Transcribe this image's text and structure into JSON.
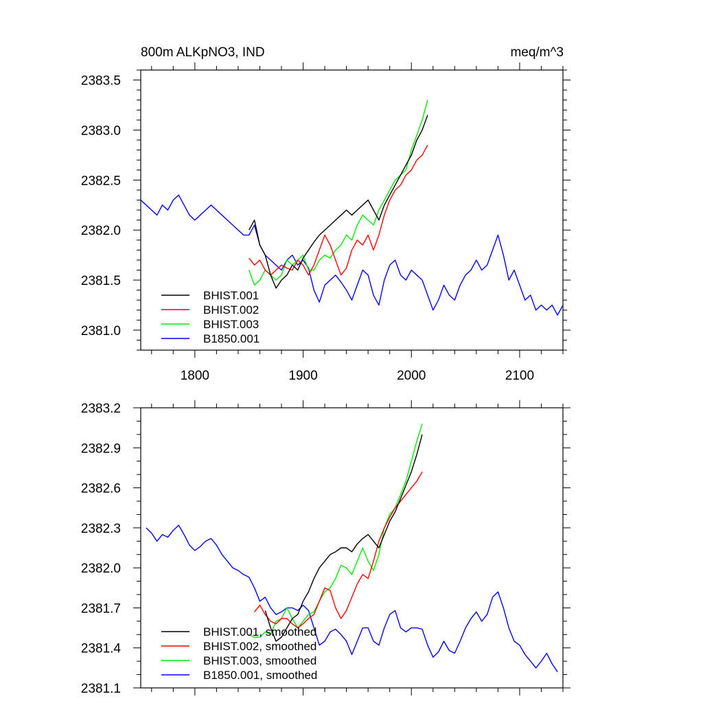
{
  "header": {
    "title": "800m ALKpNO3, IND",
    "units": "meq/m^3"
  },
  "chart_data": [
    {
      "type": "line",
      "title": "800m ALKpNO3, IND",
      "units": "meq/m^3",
      "xlim": [
        1750,
        2140
      ],
      "ylim": [
        2380.8,
        2383.6
      ],
      "xticks": [
        1800,
        1900,
        2000,
        2100
      ],
      "xtick_labels": [
        "1800",
        "1900",
        "2000",
        "2100"
      ],
      "yticks": [
        2381.0,
        2381.5,
        2382.0,
        2382.5,
        2383.0,
        2383.5
      ],
      "ytick_labels": [
        "2381.0",
        "2381.5",
        "2382.0",
        "2382.5",
        "2383.0",
        "2383.5"
      ],
      "legend_position": "bottom-left",
      "series": [
        {
          "name": "BHIST.001",
          "color": "#000000",
          "x": [
            1850,
            1855,
            1860,
            1865,
            1870,
            1875,
            1880,
            1885,
            1890,
            1895,
            1900,
            1905,
            1910,
            1915,
            1920,
            1925,
            1930,
            1935,
            1940,
            1945,
            1950,
            1955,
            1960,
            1965,
            1970,
            1975,
            1980,
            1985,
            1990,
            1995,
            2000,
            2005,
            2010,
            2015
          ],
          "y": [
            2382.0,
            2382.1,
            2381.85,
            2381.75,
            2381.55,
            2381.42,
            2381.5,
            2381.55,
            2381.65,
            2381.6,
            2381.72,
            2381.8,
            2381.88,
            2381.95,
            2382.0,
            2382.05,
            2382.1,
            2382.15,
            2382.2,
            2382.15,
            2382.2,
            2382.25,
            2382.3,
            2382.2,
            2382.1,
            2382.25,
            2382.35,
            2382.45,
            2382.55,
            2382.65,
            2382.75,
            2382.9,
            2383.0,
            2383.15
          ]
        },
        {
          "name": "BHIST.002",
          "color": "#ff0000",
          "x": [
            1850,
            1855,
            1860,
            1865,
            1870,
            1875,
            1880,
            1885,
            1890,
            1895,
            1900,
            1905,
            1910,
            1915,
            1920,
            1925,
            1930,
            1935,
            1940,
            1945,
            1950,
            1955,
            1960,
            1965,
            1970,
            1975,
            1980,
            1985,
            1990,
            1995,
            2000,
            2005,
            2010,
            2015
          ],
          "y": [
            2381.72,
            2381.65,
            2381.7,
            2381.6,
            2381.55,
            2381.6,
            2381.65,
            2381.62,
            2381.6,
            2381.7,
            2381.65,
            2381.55,
            2381.65,
            2381.8,
            2381.95,
            2381.85,
            2381.7,
            2381.55,
            2381.62,
            2381.8,
            2381.9,
            2381.85,
            2381.95,
            2381.8,
            2381.95,
            2382.15,
            2382.3,
            2382.4,
            2382.45,
            2382.55,
            2382.6,
            2382.7,
            2382.75,
            2382.85
          ]
        },
        {
          "name": "BHIST.003",
          "color": "#00ee00",
          "x": [
            1850,
            1855,
            1860,
            1865,
            1870,
            1875,
            1880,
            1885,
            1890,
            1895,
            1900,
            1905,
            1910,
            1915,
            1920,
            1925,
            1930,
            1935,
            1940,
            1945,
            1950,
            1955,
            1960,
            1965,
            1970,
            1975,
            1980,
            1985,
            1990,
            1995,
            2000,
            2005,
            2010,
            2015
          ],
          "y": [
            2381.6,
            2381.45,
            2381.5,
            2381.6,
            2381.55,
            2381.5,
            2381.55,
            2381.7,
            2381.65,
            2381.7,
            2381.75,
            2381.6,
            2381.6,
            2381.7,
            2381.75,
            2381.72,
            2381.8,
            2381.85,
            2381.95,
            2381.9,
            2382.05,
            2382.15,
            2382.1,
            2382.05,
            2382.2,
            2382.3,
            2382.4,
            2382.5,
            2382.55,
            2382.6,
            2382.8,
            2382.95,
            2383.1,
            2383.3
          ]
        },
        {
          "name": "B1850.001",
          "color": "#0000ff",
          "x": [
            1750,
            1755,
            1760,
            1765,
            1770,
            1775,
            1780,
            1785,
            1790,
            1795,
            1800,
            1805,
            1810,
            1815,
            1820,
            1825,
            1830,
            1835,
            1840,
            1845,
            1850,
            1855,
            1860,
            1865,
            1870,
            1875,
            1880,
            1885,
            1890,
            1895,
            1900,
            1905,
            1910,
            1915,
            1920,
            1925,
            1930,
            1935,
            1940,
            1945,
            1950,
            1955,
            1960,
            1965,
            1970,
            1975,
            1980,
            1985,
            1990,
            1995,
            2000,
            2005,
            2010,
            2015,
            2020,
            2025,
            2030,
            2035,
            2040,
            2045,
            2050,
            2055,
            2060,
            2065,
            2070,
            2075,
            2080,
            2085,
            2090,
            2095,
            2100,
            2105,
            2110,
            2115,
            2120,
            2125,
            2130,
            2135,
            2140
          ],
          "y": [
            2382.3,
            2382.25,
            2382.2,
            2382.15,
            2382.25,
            2382.2,
            2382.3,
            2382.35,
            2382.25,
            2382.15,
            2382.1,
            2382.15,
            2382.2,
            2382.25,
            2382.2,
            2382.15,
            2382.1,
            2382.05,
            2382.0,
            2381.95,
            2381.95,
            2382.05,
            2381.85,
            2381.75,
            2381.7,
            2381.65,
            2381.6,
            2381.7,
            2381.75,
            2381.65,
            2381.7,
            2381.62,
            2381.4,
            2381.28,
            2381.45,
            2381.5,
            2381.55,
            2381.48,
            2381.4,
            2381.3,
            2381.45,
            2381.6,
            2381.55,
            2381.35,
            2381.25,
            2381.5,
            2381.65,
            2381.7,
            2381.55,
            2381.5,
            2381.6,
            2381.55,
            2381.5,
            2381.35,
            2381.2,
            2381.3,
            2381.45,
            2381.35,
            2381.3,
            2381.45,
            2381.55,
            2381.6,
            2381.7,
            2381.6,
            2381.65,
            2381.8,
            2381.95,
            2381.75,
            2381.5,
            2381.6,
            2381.45,
            2381.3,
            2381.35,
            2381.2,
            2381.25,
            2381.2,
            2381.25,
            2381.15,
            2381.25
          ]
        }
      ]
    },
    {
      "type": "line",
      "xlim": [
        1750,
        2140
      ],
      "ylim": [
        2381.1,
        2383.2
      ],
      "xticks": [
        1800,
        1900,
        2000,
        2100
      ],
      "yticks": [
        2381.1,
        2381.4,
        2381.7,
        2382.0,
        2382.3,
        2382.6,
        2382.9,
        2383.2
      ],
      "ytick_labels": [
        "2381.1",
        "2381.4",
        "2381.7",
        "2382.0",
        "2382.3",
        "2382.6",
        "2382.9",
        "2383.2"
      ],
      "legend_position": "bottom-left",
      "series": [
        {
          "name": "BHIST.001, smoothed",
          "color": "#000000",
          "x": [
            1865,
            1870,
            1875,
            1880,
            1885,
            1890,
            1895,
            1900,
            1905,
            1910,
            1915,
            1920,
            1925,
            1930,
            1935,
            1940,
            1945,
            1950,
            1955,
            1960,
            1965,
            1970,
            1975,
            1980,
            1985,
            1990,
            1995,
            2000,
            2005,
            2010
          ],
          "y": [
            2381.68,
            2381.55,
            2381.45,
            2381.48,
            2381.55,
            2381.62,
            2381.65,
            2381.75,
            2381.82,
            2381.92,
            2382.0,
            2382.05,
            2382.1,
            2382.12,
            2382.15,
            2382.15,
            2382.12,
            2382.18,
            2382.22,
            2382.25,
            2382.2,
            2382.15,
            2382.25,
            2382.35,
            2382.42,
            2382.52,
            2382.62,
            2382.72,
            2382.85,
            2383.0
          ]
        },
        {
          "name": "BHIST.002, smoothed",
          "color": "#ff0000",
          "x": [
            1855,
            1860,
            1865,
            1870,
            1875,
            1880,
            1885,
            1890,
            1895,
            1900,
            1905,
            1910,
            1915,
            1920,
            1925,
            1930,
            1935,
            1940,
            1945,
            1950,
            1955,
            1960,
            1965,
            1970,
            1975,
            1980,
            1985,
            1990,
            1995,
            2000,
            2005,
            2010
          ],
          "y": [
            2381.67,
            2381.72,
            2381.65,
            2381.6,
            2381.58,
            2381.62,
            2381.62,
            2381.58,
            2381.55,
            2381.58,
            2381.62,
            2381.65,
            2381.75,
            2381.85,
            2381.83,
            2381.7,
            2381.62,
            2381.68,
            2381.78,
            2381.88,
            2381.95,
            2381.92,
            2382.05,
            2382.2,
            2382.3,
            2382.38,
            2382.45,
            2382.5,
            2382.55,
            2382.6,
            2382.65,
            2382.72
          ]
        },
        {
          "name": "BHIST.003, smoothed",
          "color": "#00ee00",
          "x": [
            1850,
            1855,
            1860,
            1865,
            1870,
            1875,
            1880,
            1885,
            1890,
            1895,
            1900,
            1905,
            1910,
            1915,
            1920,
            1925,
            1930,
            1935,
            1940,
            1945,
            1950,
            1955,
            1960,
            1965,
            1970,
            1975,
            1980,
            1985,
            1990,
            1995,
            2000,
            2005,
            2010
          ],
          "y": [
            2381.5,
            2381.48,
            2381.48,
            2381.52,
            2381.5,
            2381.6,
            2381.62,
            2381.7,
            2381.62,
            2381.55,
            2381.6,
            2381.65,
            2381.67,
            2381.75,
            2381.82,
            2381.85,
            2381.92,
            2382.02,
            2382.0,
            2381.95,
            2382.05,
            2382.15,
            2382.05,
            2381.98,
            2382.1,
            2382.3,
            2382.4,
            2382.45,
            2382.55,
            2382.65,
            2382.8,
            2382.95,
            2383.08
          ]
        },
        {
          "name": "B1850.001, smoothed",
          "color": "#0000ff",
          "x": [
            1755,
            1760,
            1765,
            1770,
            1775,
            1780,
            1785,
            1790,
            1795,
            1800,
            1805,
            1810,
            1815,
            1820,
            1825,
            1830,
            1835,
            1840,
            1845,
            1850,
            1855,
            1860,
            1865,
            1870,
            1875,
            1880,
            1885,
            1890,
            1895,
            1900,
            1905,
            1910,
            1915,
            1920,
            1925,
            1930,
            1935,
            1940,
            1945,
            1950,
            1955,
            1960,
            1965,
            1970,
            1975,
            1980,
            1985,
            1990,
            1995,
            2000,
            2005,
            2010,
            2015,
            2020,
            2025,
            2030,
            2035,
            2040,
            2045,
            2050,
            2055,
            2060,
            2065,
            2070,
            2075,
            2080,
            2085,
            2090,
            2095,
            2100,
            2105,
            2110,
            2115,
            2120,
            2125,
            2130,
            2135
          ],
          "y": [
            2382.3,
            2382.26,
            2382.2,
            2382.25,
            2382.23,
            2382.28,
            2382.32,
            2382.25,
            2382.17,
            2382.13,
            2382.16,
            2382.2,
            2382.22,
            2382.17,
            2382.1,
            2382.05,
            2382.0,
            2381.98,
            2381.95,
            2381.93,
            2381.85,
            2381.75,
            2381.78,
            2381.7,
            2381.65,
            2381.67,
            2381.7,
            2381.7,
            2381.68,
            2381.72,
            2381.68,
            2381.55,
            2381.42,
            2381.45,
            2381.52,
            2381.54,
            2381.5,
            2381.45,
            2381.35,
            2381.45,
            2381.55,
            2381.55,
            2381.45,
            2381.42,
            2381.55,
            2381.65,
            2381.68,
            2381.55,
            2381.52,
            2381.55,
            2381.55,
            2381.54,
            2381.42,
            2381.33,
            2381.37,
            2381.45,
            2381.38,
            2381.36,
            2381.45,
            2381.55,
            2381.62,
            2381.67,
            2381.6,
            2381.65,
            2381.78,
            2381.82,
            2381.7,
            2381.55,
            2381.45,
            2381.42,
            2381.35,
            2381.3,
            2381.25,
            2381.3,
            2381.36,
            2381.28,
            2381.22
          ]
        }
      ]
    }
  ]
}
